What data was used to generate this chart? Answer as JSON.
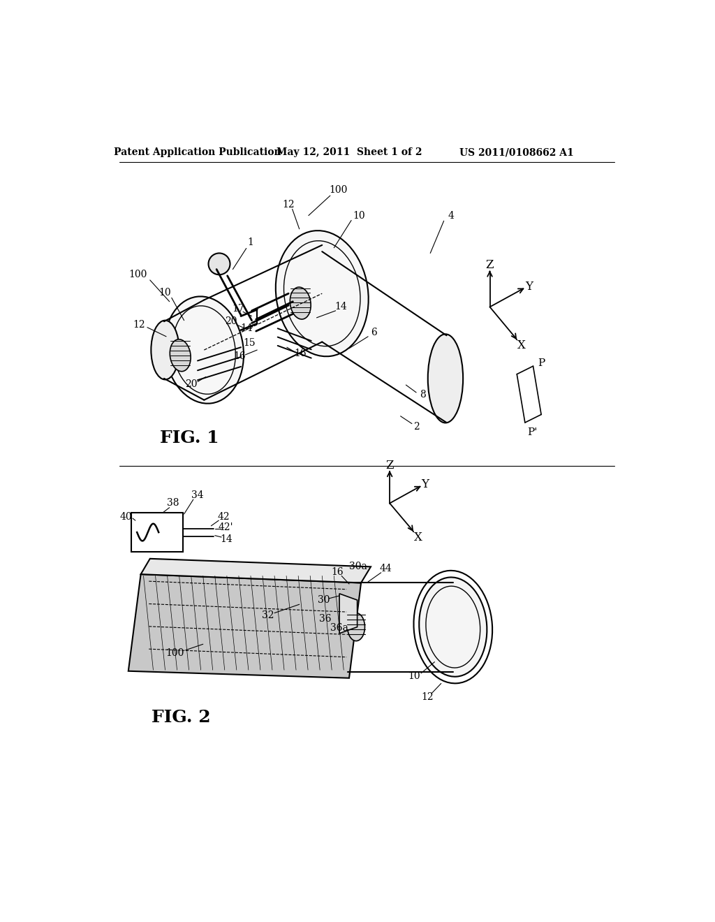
{
  "background_color": "#ffffff",
  "header_left": "Patent Application Publication",
  "header_mid": "May 12, 2011  Sheet 1 of 2",
  "header_right": "US 2011/0108662 A1",
  "fig1_label": "FIG. 1",
  "fig2_label": "FIG. 2",
  "title_fontsize": 11,
  "label_fontsize": 10,
  "fig_label_fontsize": 18
}
